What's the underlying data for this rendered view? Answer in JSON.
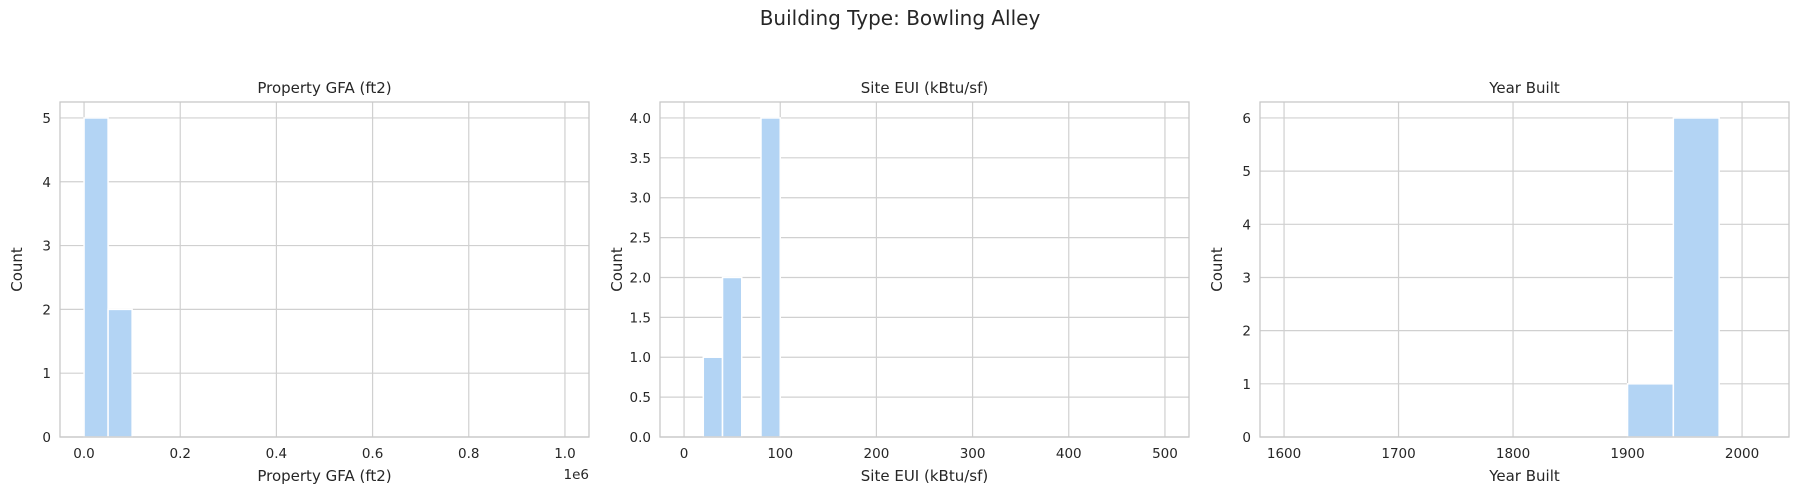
{
  "figure": {
    "suptitle": "Building Type: Bowling Alley"
  },
  "colors": {
    "bar": "#b3d4f4",
    "grid": "#d0d0d0",
    "spine": "#c8c8c8",
    "text": "#262626"
  },
  "chart_data": [
    {
      "type": "bar",
      "title": "Property GFA (ft2)",
      "xlabel": "Property GFA (ft2)",
      "ylabel": "Count",
      "x_offset_label": "1e6",
      "xlim": [
        -50000,
        1050000
      ],
      "ylim": [
        0,
        5.25
      ],
      "xticks": [
        0,
        200000,
        400000,
        600000,
        800000,
        1000000
      ],
      "xtick_labels": [
        "0.0",
        "0.2",
        "0.4",
        "0.6",
        "0.8",
        "1.0"
      ],
      "yticks": [
        0,
        1,
        2,
        3,
        4,
        5
      ],
      "ytick_labels": [
        "0",
        "1",
        "2",
        "3",
        "4",
        "5"
      ],
      "grid": true,
      "bins": [
        [
          0,
          50000
        ],
        [
          50000,
          100000
        ]
      ],
      "values": [
        5,
        2
      ]
    },
    {
      "type": "bar",
      "title": "Site EUI (kBtu/sf)",
      "xlabel": "Site EUI (kBtu/sf)",
      "ylabel": "Count",
      "xlim": [
        -25,
        525
      ],
      "ylim": [
        0,
        4.2
      ],
      "xticks": [
        0,
        100,
        200,
        300,
        400,
        500
      ],
      "xtick_labels": [
        "0",
        "100",
        "200",
        "300",
        "400",
        "500"
      ],
      "yticks": [
        0,
        0.5,
        1.0,
        1.5,
        2.0,
        2.5,
        3.0,
        3.5,
        4.0
      ],
      "ytick_labels": [
        "0.0",
        "0.5",
        "1.0",
        "1.5",
        "2.0",
        "2.5",
        "3.0",
        "3.5",
        "4.0"
      ],
      "grid": true,
      "bins": [
        [
          20,
          40
        ],
        [
          40,
          60
        ],
        [
          80,
          100
        ]
      ],
      "values": [
        1,
        2,
        4
      ]
    },
    {
      "type": "bar",
      "title": "Year Built",
      "xlabel": "Year Built",
      "ylabel": "Count",
      "xlim": [
        1579,
        2041
      ],
      "ylim": [
        0,
        6.3
      ],
      "xticks": [
        1600,
        1700,
        1800,
        1900,
        2000
      ],
      "xtick_labels": [
        "1600",
        "1700",
        "1800",
        "1900",
        "2000"
      ],
      "yticks": [
        0,
        1,
        2,
        3,
        4,
        5,
        6
      ],
      "ytick_labels": [
        "0",
        "1",
        "2",
        "3",
        "4",
        "5",
        "6"
      ],
      "grid": true,
      "bins": [
        [
          1900,
          1940
        ],
        [
          1940,
          1980
        ]
      ],
      "values": [
        1,
        6
      ]
    }
  ]
}
